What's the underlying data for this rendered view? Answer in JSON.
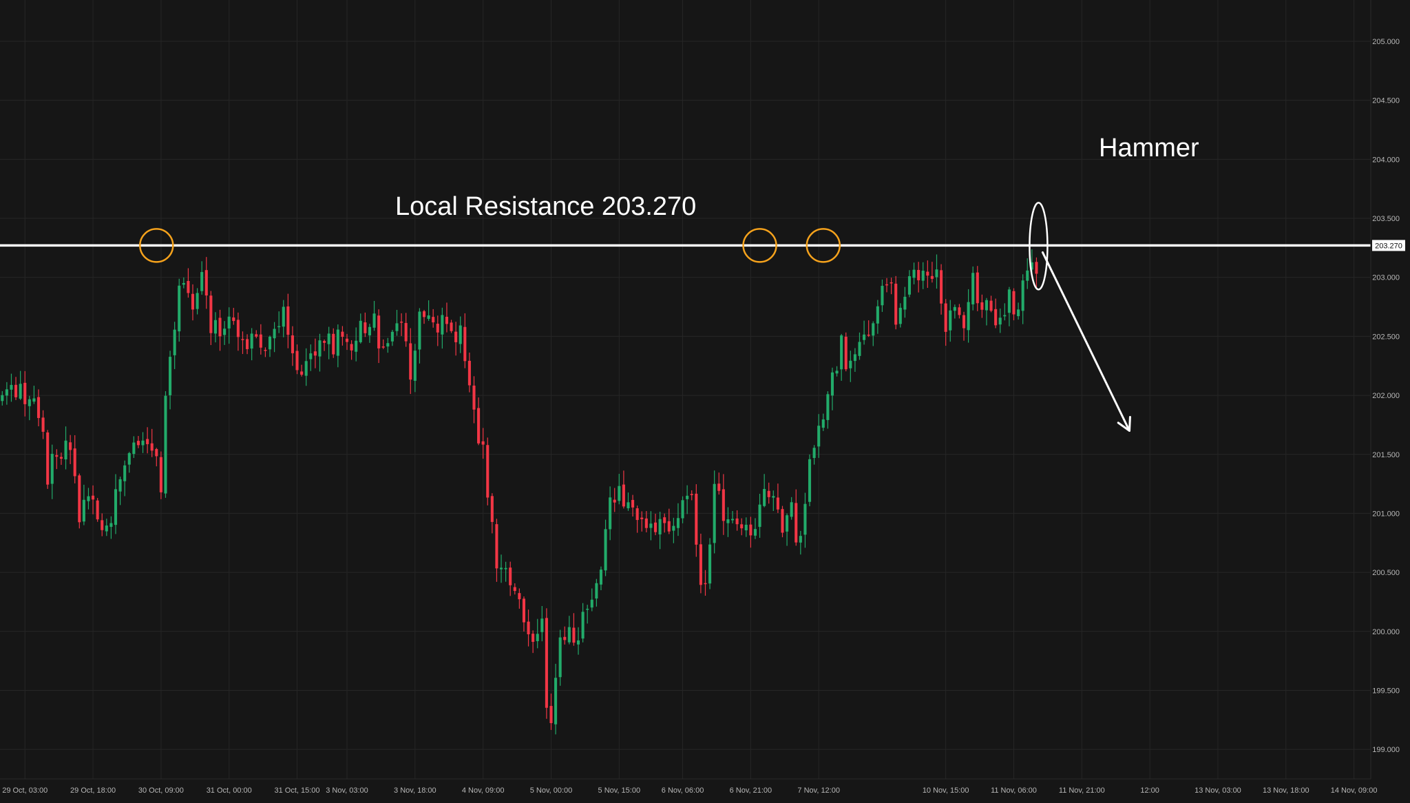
{
  "colors": {
    "background": "#161616",
    "grid": "#262626",
    "axis_text": "#b7b7b7",
    "up_candle": "#22ab6a",
    "down_candle": "#f23645",
    "resistance_line": "#ffffff",
    "marker_circle": "#f5a21c",
    "annotation": "#ffffff"
  },
  "chart_data": {
    "type": "candlestick",
    "title": "",
    "xlabel": "",
    "ylabel": "",
    "ylim": [
      198.75,
      205.35
    ],
    "y_ticks": [
      199.0,
      199.5,
      200.0,
      200.5,
      201.0,
      201.5,
      202.0,
      202.5,
      203.0,
      203.5,
      204.0,
      204.5,
      205.0
    ],
    "y_tick_labels": [
      "199.000",
      "199.500",
      "200.000",
      "200.500",
      "201.000",
      "201.500",
      "202.000",
      "202.500",
      "203.000",
      "203.500",
      "204.000",
      "204.500",
      "205.000"
    ],
    "x_ticks": [
      {
        "label": "29 Oct, 03:00",
        "index": 5
      },
      {
        "label": "29 Oct, 18:00",
        "index": 20
      },
      {
        "label": "30 Oct, 09:00",
        "index": 35
      },
      {
        "label": "31 Oct, 00:00",
        "index": 50
      },
      {
        "label": "31 Oct, 15:00",
        "index": 65
      },
      {
        "label": "3 Nov, 03:00",
        "index": 76
      },
      {
        "label": "3 Nov, 18:00",
        "index": 91
      },
      {
        "label": "4 Nov, 09:00",
        "index": 106
      },
      {
        "label": "5 Nov, 00:00",
        "index": 121
      },
      {
        "label": "5 Nov, 15:00",
        "index": 136
      },
      {
        "label": "6 Nov, 06:00",
        "index": 150
      },
      {
        "label": "6 Nov, 21:00",
        "index": 165
      },
      {
        "label": "7 Nov, 12:00",
        "index": 180
      },
      {
        "label": "10 Nov, 15:00",
        "index": 208
      },
      {
        "label": "11 Nov, 06:00",
        "index": 223
      },
      {
        "label": "11 Nov, 21:00",
        "index": 238
      },
      {
        "label": "12:00",
        "index": 253
      },
      {
        "label": "13 Nov, 03:00",
        "index": 268
      },
      {
        "label": "13 Nov, 18:00",
        "index": 283
      },
      {
        "label": "14 Nov, 09:00",
        "index": 298
      }
    ],
    "x_range": [
      -0.5,
      301.7
    ],
    "close_path": [
      {
        "i": 0,
        "v": 201.95
      },
      {
        "i": 2,
        "v": 202.15
      },
      {
        "i": 5,
        "v": 201.95
      },
      {
        "i": 8,
        "v": 201.9
      },
      {
        "i": 10,
        "v": 201.3
      },
      {
        "i": 12,
        "v": 201.5
      },
      {
        "i": 15,
        "v": 201.6
      },
      {
        "i": 17,
        "v": 201.0
      },
      {
        "i": 20,
        "v": 201.2
      },
      {
        "i": 22,
        "v": 200.75
      },
      {
        "i": 25,
        "v": 201.15
      },
      {
        "i": 28,
        "v": 201.45
      },
      {
        "i": 30,
        "v": 201.55
      },
      {
        "i": 33,
        "v": 201.6
      },
      {
        "i": 35,
        "v": 201.15
      },
      {
        "i": 36,
        "v": 201.95
      },
      {
        "i": 38,
        "v": 202.6
      },
      {
        "i": 40,
        "v": 203.05
      },
      {
        "i": 42,
        "v": 202.75
      },
      {
        "i": 44,
        "v": 203.0
      },
      {
        "i": 46,
        "v": 202.55
      },
      {
        "i": 50,
        "v": 202.65
      },
      {
        "i": 53,
        "v": 202.55
      },
      {
        "i": 56,
        "v": 202.4
      },
      {
        "i": 60,
        "v": 202.55
      },
      {
        "i": 62,
        "v": 202.8
      },
      {
        "i": 64,
        "v": 202.4
      },
      {
        "i": 66,
        "v": 202.1
      },
      {
        "i": 68,
        "v": 202.3
      },
      {
        "i": 72,
        "v": 202.45
      },
      {
        "i": 76,
        "v": 202.45
      },
      {
        "i": 80,
        "v": 202.55
      },
      {
        "i": 82,
        "v": 202.7
      },
      {
        "i": 84,
        "v": 202.3
      },
      {
        "i": 86,
        "v": 202.5
      },
      {
        "i": 88,
        "v": 202.65
      },
      {
        "i": 90,
        "v": 202.2
      },
      {
        "i": 92,
        "v": 202.6
      },
      {
        "i": 96,
        "v": 202.6
      },
      {
        "i": 100,
        "v": 202.55
      },
      {
        "i": 101,
        "v": 202.5
      },
      {
        "i": 102,
        "v": 202.3
      },
      {
        "i": 104,
        "v": 201.9
      },
      {
        "i": 106,
        "v": 201.5
      },
      {
        "i": 108,
        "v": 200.95
      },
      {
        "i": 109,
        "v": 200.5
      },
      {
        "i": 111,
        "v": 200.45
      },
      {
        "i": 113,
        "v": 200.3
      },
      {
        "i": 115,
        "v": 200.05
      },
      {
        "i": 117,
        "v": 199.95
      },
      {
        "i": 119,
        "v": 200.1
      },
      {
        "i": 120,
        "v": 199.45
      },
      {
        "i": 121,
        "v": 199.3
      },
      {
        "i": 123,
        "v": 199.9
      },
      {
        "i": 126,
        "v": 199.95
      },
      {
        "i": 128,
        "v": 200.1
      },
      {
        "i": 130,
        "v": 200.35
      },
      {
        "i": 132,
        "v": 200.55
      },
      {
        "i": 134,
        "v": 201.05
      },
      {
        "i": 135,
        "v": 201.2
      },
      {
        "i": 137,
        "v": 201.05
      },
      {
        "i": 140,
        "v": 200.95
      },
      {
        "i": 143,
        "v": 200.95
      },
      {
        "i": 146,
        "v": 200.85
      },
      {
        "i": 149,
        "v": 201.05
      },
      {
        "i": 152,
        "v": 201.15
      },
      {
        "i": 153,
        "v": 200.8
      },
      {
        "i": 154,
        "v": 200.45
      },
      {
        "i": 155,
        "v": 200.5
      },
      {
        "i": 157,
        "v": 201.15
      },
      {
        "i": 160,
        "v": 200.95
      },
      {
        "i": 163,
        "v": 200.9
      },
      {
        "i": 165,
        "v": 200.75
      },
      {
        "i": 167,
        "v": 201.1
      },
      {
        "i": 170,
        "v": 201.2
      },
      {
        "i": 172,
        "v": 200.8
      },
      {
        "i": 174,
        "v": 201.05
      },
      {
        "i": 175,
        "v": 200.75
      },
      {
        "i": 176,
        "v": 200.85
      },
      {
        "i": 178,
        "v": 201.35
      },
      {
        "i": 180,
        "v": 201.7
      },
      {
        "i": 182,
        "v": 202.05
      },
      {
        "i": 184,
        "v": 202.25
      },
      {
        "i": 185,
        "v": 202.45
      },
      {
        "i": 187,
        "v": 202.2
      },
      {
        "i": 189,
        "v": 202.5
      },
      {
        "i": 191,
        "v": 202.45
      },
      {
        "i": 193,
        "v": 202.65
      },
      {
        "i": 194,
        "v": 203.0
      },
      {
        "i": 196,
        "v": 202.9
      },
      {
        "i": 197,
        "v": 202.55
      },
      {
        "i": 199,
        "v": 202.85
      },
      {
        "i": 201,
        "v": 203.0
      },
      {
        "i": 203,
        "v": 202.95
      },
      {
        "i": 204,
        "v": 203.1
      },
      {
        "i": 206,
        "v": 203.0
      },
      {
        "i": 207,
        "v": 202.75
      },
      {
        "i": 208,
        "v": 202.55
      },
      {
        "i": 210,
        "v": 202.75
      },
      {
        "i": 212,
        "v": 202.6
      },
      {
        "i": 213,
        "v": 202.85
      },
      {
        "i": 214,
        "v": 202.95
      },
      {
        "i": 216,
        "v": 202.65
      },
      {
        "i": 218,
        "v": 202.8
      },
      {
        "i": 219,
        "v": 202.65
      },
      {
        "i": 220,
        "v": 202.55
      },
      {
        "i": 221,
        "v": 202.75
      },
      {
        "i": 222,
        "v": 202.85
      },
      {
        "i": 224,
        "v": 202.7
      },
      {
        "i": 226,
        "v": 203.15
      },
      {
        "i": 227,
        "v": 203.2
      },
      {
        "i": 228,
        "v": 203.05
      }
    ],
    "resistance": {
      "value": 203.27,
      "label": "Local Resistance 203.270",
      "price_tag": "203.270"
    },
    "annotations": {
      "hammer_label": "Hammer",
      "touch_indices": [
        34,
        167,
        181
      ],
      "hammer_index": 228,
      "arrow_target": {
        "i": 248.5,
        "v": 201.7
      }
    }
  }
}
